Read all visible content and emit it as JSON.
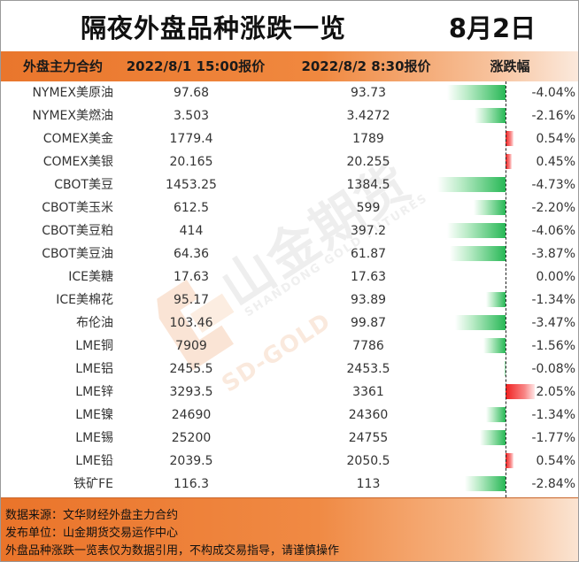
{
  "title": "隔夜外盘品种涨跌一览",
  "date": "8月2日",
  "headers": {
    "name": "外盘主力合约",
    "price1": "2022/8/1 15:00报价",
    "price2": "2022/8/2 8:30报价",
    "change": "涨跌幅"
  },
  "colors": {
    "header_orange": "#e9762c",
    "negative_green": "#28b856",
    "positive_red": "#f01f1f"
  },
  "chart_data": {
    "type": "bar",
    "orientation": "horizontal",
    "categories": [
      "NYMEX美原油",
      "NYMEX美燃油",
      "COMEX美金",
      "COMEX美银",
      "CBOT美豆",
      "CBOT美玉米",
      "CBOT美豆粕",
      "CBOT美豆油",
      "ICE美糖",
      "ICE美棉花",
      "布伦油",
      "LME铜",
      "LME铝",
      "LME锌",
      "LME镍",
      "LME锡",
      "LME铅",
      "铁矿FE"
    ],
    "price_prev": [
      "97.68",
      "3.503",
      "1779.4",
      "20.165",
      "1453.25",
      "612.5",
      "414",
      "64.36",
      "17.63",
      "95.17",
      "103.46",
      "7909",
      "2455.5",
      "3293.5",
      "24690",
      "25200",
      "2039.5",
      "116.3"
    ],
    "price_curr": [
      "93.73",
      "3.4272",
      "1789",
      "20.255",
      "1384.5",
      "599",
      "397.2",
      "61.87",
      "17.63",
      "93.89",
      "99.87",
      "7786",
      "2453.5",
      "3361",
      "24360",
      "24755",
      "2050.5",
      "113"
    ],
    "values": [
      -4.04,
      -2.16,
      0.54,
      0.45,
      -4.73,
      -2.2,
      -4.06,
      -3.87,
      0.0,
      -1.34,
      -3.47,
      -1.56,
      -0.08,
      2.05,
      -1.34,
      -1.77,
      0.54,
      -2.84
    ],
    "value_labels": [
      "-4.04%",
      "-2.16%",
      "0.54%",
      "0.45%",
      "-4.73%",
      "-2.20%",
      "-4.06%",
      "-3.87%",
      "0.00%",
      "-1.34%",
      "-3.47%",
      "-1.56%",
      "-0.08%",
      "2.05%",
      "-1.34%",
      "-1.77%",
      "0.54%",
      "-2.84%"
    ],
    "value_unit": "%",
    "negative_color": "#28b856",
    "positive_color": "#f01f1f"
  },
  "footer": {
    "source": "数据来源：文华财经外盘主力合约",
    "publisher": "发布单位：山金期货交易运作中心",
    "disclaimer": "外盘品种涨跌一览表仅为数据引用，不构成交易指导，请谨慎操作"
  },
  "watermark": {
    "cn": "山金期货",
    "en": "SHANDONG GOLD FUTURES",
    "brand": "SD-GOLD"
  }
}
